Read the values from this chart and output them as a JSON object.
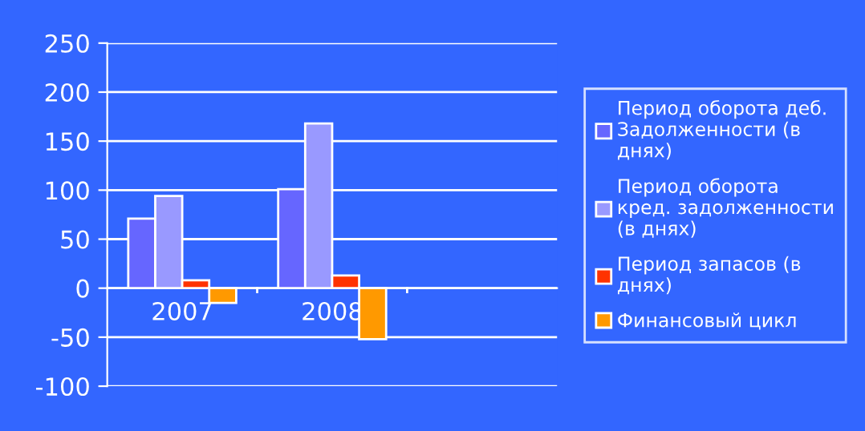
{
  "chart_data": {
    "type": "bar",
    "categories": [
      "2007",
      "2008",
      null
    ],
    "series": [
      {
        "name": "Период оборота деб. Задолженности (в днях)",
        "color": "#6666ff",
        "values": [
          71,
          101,
          null
        ]
      },
      {
        "name": "Период оборота кред. задолженности (в днях)",
        "color": "#9999ff",
        "values": [
          94,
          168,
          null
        ]
      },
      {
        "name": "Период запасов (в днях)",
        "color": "#ff3300",
        "values": [
          8,
          13,
          null
        ]
      },
      {
        "name": "Финансовый цикл",
        "color": "#ff9900",
        "values": [
          -15,
          -52,
          null
        ]
      }
    ],
    "ylim": [
      -100,
      250
    ],
    "yticks": [
      -100,
      -50,
      0,
      50,
      100,
      150,
      200,
      250
    ],
    "grid": "y",
    "legend": "right"
  }
}
